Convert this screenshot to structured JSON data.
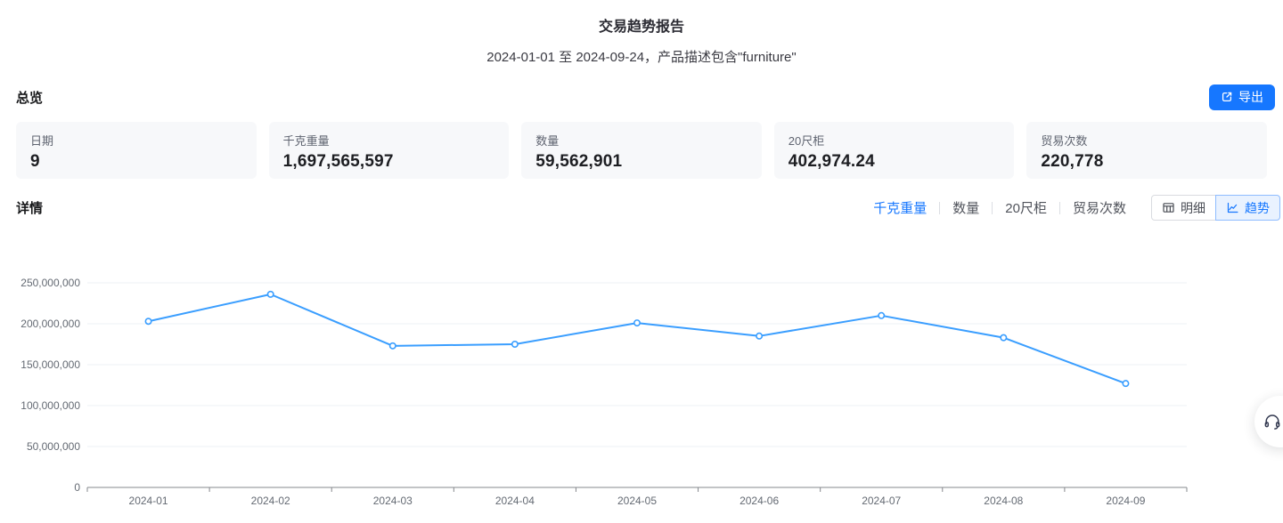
{
  "page": {
    "title": "交易趋势报告",
    "subtitle": "2024-01-01 至 2024-09-24，产品描述包含\"furniture\""
  },
  "overview": {
    "title": "总览",
    "export_label": "导出",
    "export_icon": "export-icon"
  },
  "stats": [
    {
      "label": "日期",
      "value": "9"
    },
    {
      "label": "千克重量",
      "value": "1,697,565,597"
    },
    {
      "label": "数量",
      "value": "59,562,901"
    },
    {
      "label": "20尺柜",
      "value": "402,974.24"
    },
    {
      "label": "贸易次数",
      "value": "220,778"
    }
  ],
  "details": {
    "title": "详情",
    "metric_tabs": [
      {
        "label": "千克重量",
        "active": true
      },
      {
        "label": "数量",
        "active": false
      },
      {
        "label": "20尺柜",
        "active": false
      },
      {
        "label": "贸易次数",
        "active": false
      }
    ],
    "view_toggle": [
      {
        "label": "明细",
        "icon": "table-icon",
        "active": false
      },
      {
        "label": "趋势",
        "icon": "line-chart-icon",
        "active": true
      }
    ]
  },
  "chart_data": {
    "type": "line",
    "title": "",
    "categories": [
      "2024-01",
      "2024-02",
      "2024-03",
      "2024-04",
      "2024-05",
      "2024-06",
      "2024-07",
      "2024-08",
      "2024-09"
    ],
    "series": [
      {
        "name": "千克重量",
        "values": [
          203000000,
          236000000,
          173000000,
          175000000,
          201000000,
          185000000,
          210000000,
          183000000,
          127000000
        ]
      }
    ],
    "xlabel": "",
    "ylabel": "",
    "ylim": [
      0,
      250000000
    ],
    "ytick_interval": 50000000,
    "grid": true,
    "legend": false,
    "marker": "empty-circle"
  },
  "floating": {
    "icon": "headset-icon"
  },
  "colors": {
    "primary": "#1677ff",
    "line": "#3a9eff",
    "card_bg": "#f7f8fa",
    "grid_line": "#eef0f4",
    "axis_line": "#86888d",
    "axis_text": "#646a73",
    "toggle_active_bg": "#e9f2ff",
    "toggle_active_border": "#8fbcff"
  }
}
